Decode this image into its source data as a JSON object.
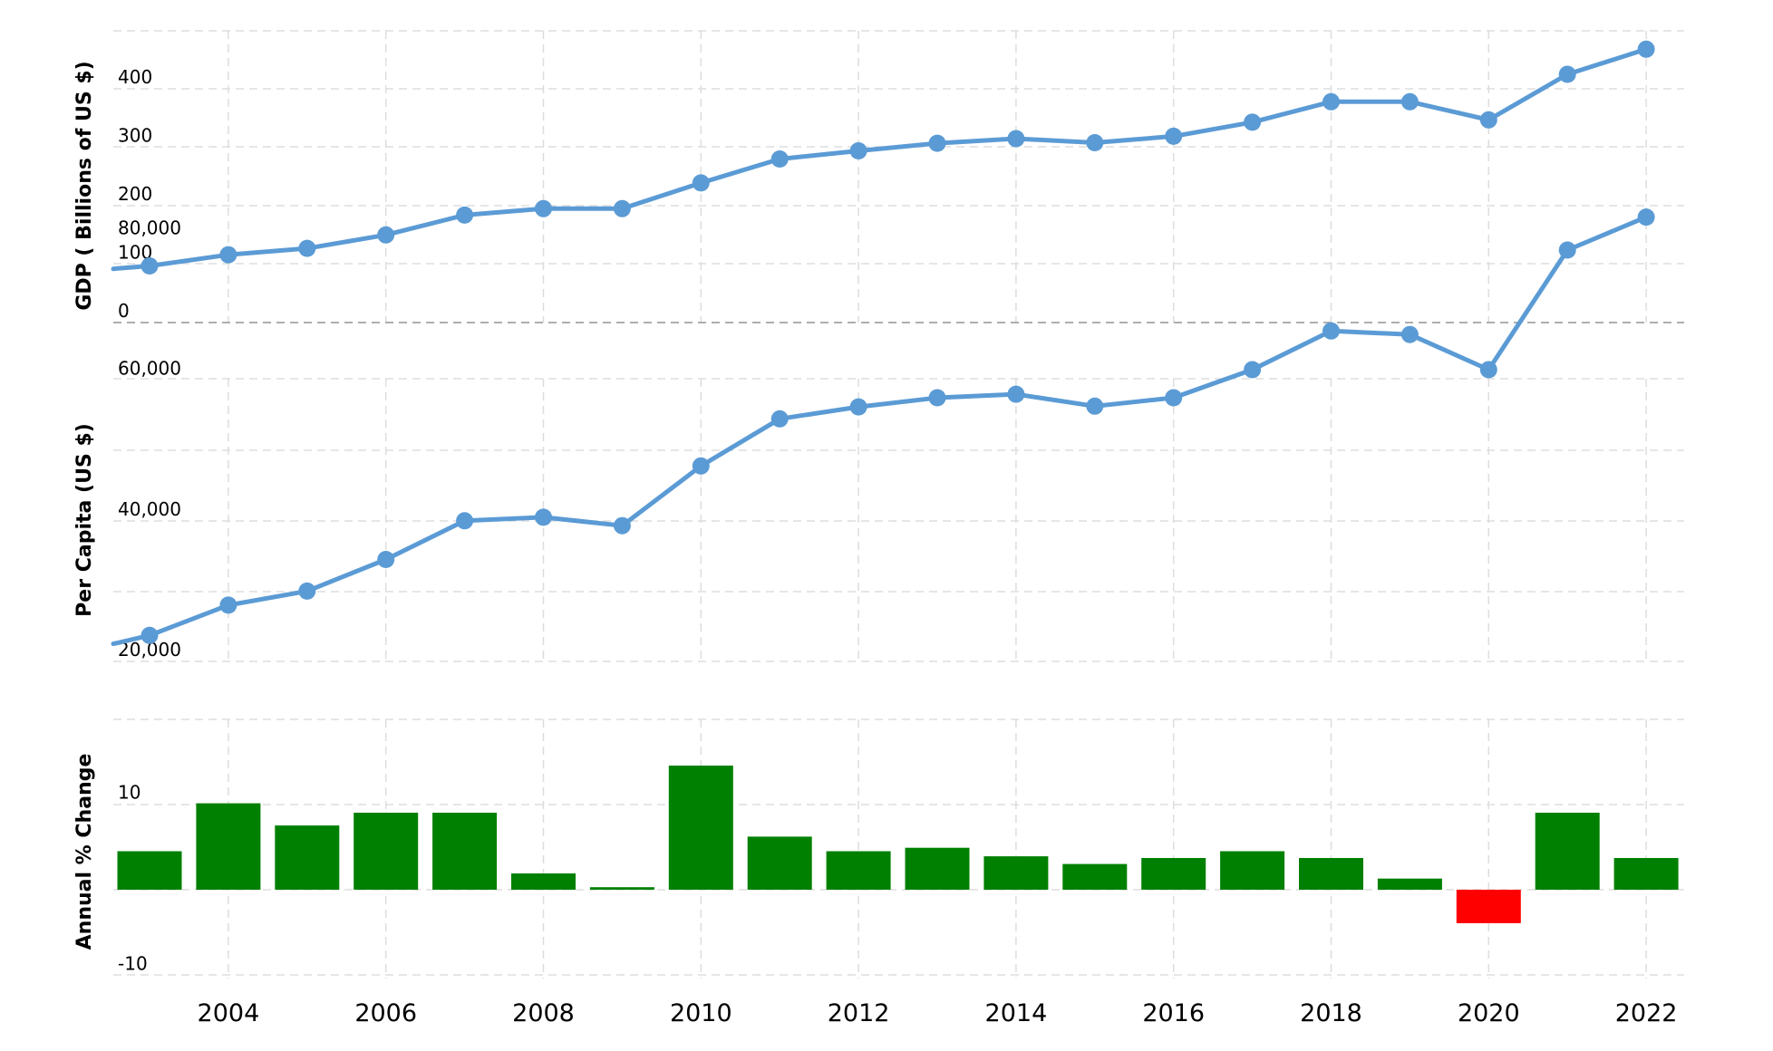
{
  "chart_data": {
    "type": "composite",
    "x": [
      2002,
      2003,
      2004,
      2005,
      2006,
      2007,
      2008,
      2009,
      2010,
      2011,
      2012,
      2013,
      2014,
      2015,
      2016,
      2017,
      2018,
      2019,
      2020,
      2021,
      2022
    ],
    "x_ticks": [
      "2004",
      "2006",
      "2008",
      "2010",
      "2012",
      "2014",
      "2016",
      "2018",
      "2020",
      "2022"
    ],
    "line_color": "#5b9bd5",
    "bar_positive_color": "#008000",
    "bar_negative_color": "#ff0000",
    "grid": true,
    "panels": [
      {
        "type": "line",
        "ylabel": "GDP ( Billions of US $)",
        "ylim": [
          0,
          500
        ],
        "yticks": [
          "0",
          "100",
          "200",
          "300",
          "400"
        ],
        "values": [
          92,
          97,
          116,
          127,
          150,
          184,
          195,
          195,
          239,
          280,
          294,
          307,
          315,
          308,
          319,
          343,
          378,
          378,
          347,
          425,
          468
        ]
      },
      {
        "type": "line",
        "ylabel": "Per Capita (US $)",
        "ylim": [
          20000,
          100000
        ],
        "yticks": [
          "20,000",
          "40,000",
          "60,000",
          "80,000"
        ],
        "values": [
          22500,
          23700,
          28000,
          30000,
          34500,
          40000,
          40500,
          39300,
          47800,
          54500,
          56200,
          57500,
          58000,
          56300,
          57500,
          61500,
          67000,
          66500,
          61500,
          78500,
          83200
        ]
      },
      {
        "type": "bar",
        "ylabel": "Annual % Change",
        "ylim": [
          -10,
          20
        ],
        "yticks": [
          "-10",
          "0",
          "10"
        ],
        "values": [
          null,
          4.5,
          10.1,
          7.5,
          9.0,
          9.0,
          1.9,
          0.3,
          14.5,
          6.2,
          4.5,
          4.9,
          3.9,
          3.0,
          3.7,
          4.5,
          3.7,
          1.3,
          -3.9,
          9.0,
          3.7
        ]
      }
    ]
  }
}
